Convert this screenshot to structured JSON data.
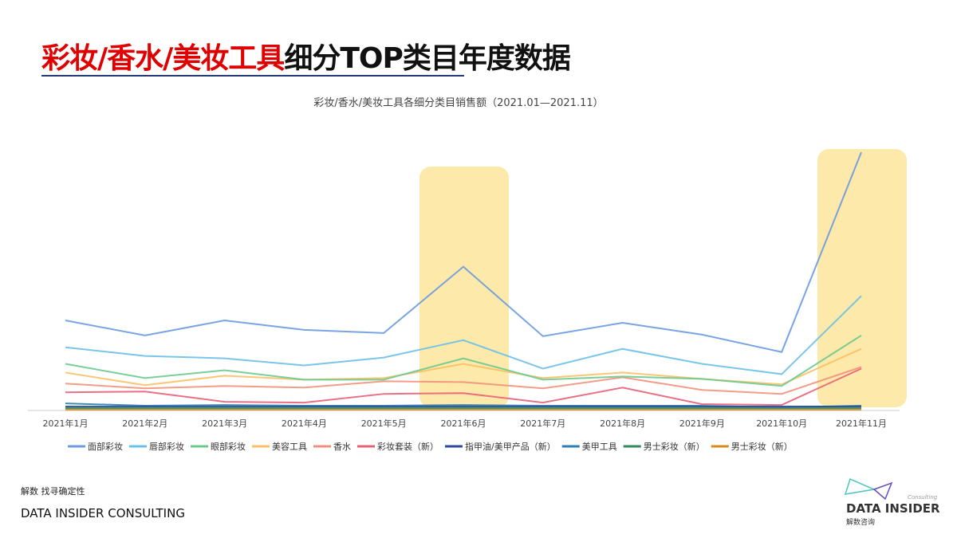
{
  "page": {
    "title_red": "彩妆/香水/美妆工具",
    "title_black": "细分TOP类目年度数据",
    "tagline": "解数 找寻确定性",
    "company": "DATA INSIDER CONSULTING",
    "logo_en": "DATA INSIDER",
    "logo_cn": "解数咨询",
    "logo_consulting": "Consulting"
  },
  "chart_data": {
    "type": "line",
    "title": "彩妆/香水/美妆工具各细分类目销售额（2021.01—2021.11）",
    "categories": [
      "2021年1月",
      "2021年2月",
      "2021年3月",
      "2021年4月",
      "2021年5月",
      "2021年6月",
      "2021年7月",
      "2021年8月",
      "2021年9月",
      "2021年10月",
      "2021年11月"
    ],
    "highlighted_categories": [
      "2021年6月",
      "2021年11月"
    ],
    "highlight_color": "#fde9a9",
    "legend_position": "bottom",
    "ylim": [
      0,
      330
    ],
    "series": [
      {
        "name": "面部彩妆",
        "color": "#6a9ae0",
        "values": [
          114,
          95,
          114,
          102,
          98,
          182,
          94,
          111,
          96,
          74,
          327
        ]
      },
      {
        "name": "唇部彩妆",
        "color": "#6ac0e8",
        "values": [
          80,
          69,
          66,
          57,
          67,
          89,
          53,
          78,
          59,
          46,
          145
        ]
      },
      {
        "name": "眼部彩妆",
        "color": "#6cc98e",
        "values": [
          59,
          41,
          51,
          39,
          39,
          66,
          39,
          43,
          40,
          31,
          95
        ]
      },
      {
        "name": "美容工具",
        "color": "#fbc064",
        "values": [
          48,
          32,
          44,
          39,
          41,
          59,
          41,
          48,
          40,
          33,
          78
        ]
      },
      {
        "name": "香水",
        "color": "#f2917a",
        "values": [
          34,
          28,
          31,
          29,
          37,
          36,
          28,
          42,
          26,
          21,
          55
        ]
      },
      {
        "name": "彩妆套装（新）",
        "color": "#e86078",
        "values": [
          23,
          24,
          11,
          10,
          21,
          22,
          10,
          29,
          8,
          7,
          53
        ]
      },
      {
        "name": "指甲油/美甲产品（新）",
        "color": "#2a4aa0",
        "values": [
          5,
          5,
          5,
          5,
          5,
          5,
          5,
          5,
          5,
          5,
          5
        ]
      },
      {
        "name": "美甲工具",
        "color": "#2e7fae",
        "values": [
          9,
          6,
          7,
          6,
          6,
          7,
          6,
          6,
          6,
          4,
          6
        ]
      },
      {
        "name": "男士彩妆（新）",
        "color": "#2e8a5a",
        "values": [
          3,
          3,
          3,
          3,
          3,
          3,
          3,
          3,
          3,
          3,
          3
        ]
      },
      {
        "name": "男士彩妆（新）",
        "color": "#d68a1a",
        "values": [
          1,
          1,
          1,
          1,
          1,
          1,
          1,
          1,
          1,
          1,
          1
        ]
      }
    ]
  }
}
